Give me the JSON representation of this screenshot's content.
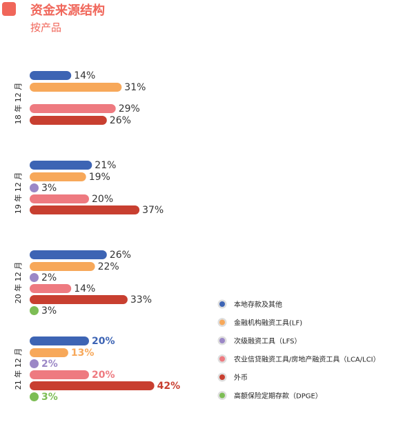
{
  "header": {
    "title": "资金来源结构",
    "subtitle": "按产品",
    "accent": "#f0665a"
  },
  "chart_data": {
    "type": "bar",
    "orientation": "horizontal",
    "title": "资金来源结构",
    "subtitle": "按产品",
    "series": [
      {
        "name": "本地存款及其他",
        "color": "#3d64b4"
      },
      {
        "name": "金融机构融资工具(LF)",
        "color": "#f7a85a"
      },
      {
        "name": "次级融资工具（LFS）",
        "color": "#9b87c6"
      },
      {
        "name": "农业信贷融资工具/房地产融资工具（LCA/LCI）",
        "color": "#ee7a80"
      },
      {
        "name": "外币",
        "color": "#c83f30"
      },
      {
        "name": "高额保险定期存款（DPGE）",
        "color": "#7dbd55"
      }
    ],
    "groups": [
      {
        "label": "18 年 12 月",
        "bold": false,
        "values": [
          14,
          31,
          null,
          29,
          26,
          null
        ],
        "labels": [
          "14%",
          "31%",
          "",
          "29%",
          "26%",
          ""
        ]
      },
      {
        "label": "19 年 12 月",
        "bold": false,
        "values": [
          21,
          19,
          3,
          20,
          37,
          null
        ],
        "labels": [
          "21%",
          "19%",
          "3%",
          "20%",
          "37%",
          ""
        ]
      },
      {
        "label": "20 年 12 月",
        "bold": false,
        "values": [
          26,
          22,
          2,
          14,
          33,
          3
        ],
        "labels": [
          "26%",
          "22%",
          "2%",
          "14%",
          "33%",
          "3%"
        ]
      },
      {
        "label": "21 年 12 月",
        "bold": true,
        "values": [
          20,
          13,
          2,
          20,
          42,
          3
        ],
        "labels": [
          "20%",
          "13%",
          "2%",
          "20%",
          "42%",
          "3%"
        ]
      }
    ],
    "xlim": [
      0,
      42
    ],
    "legend_position": "bottom-right",
    "grid": false
  }
}
